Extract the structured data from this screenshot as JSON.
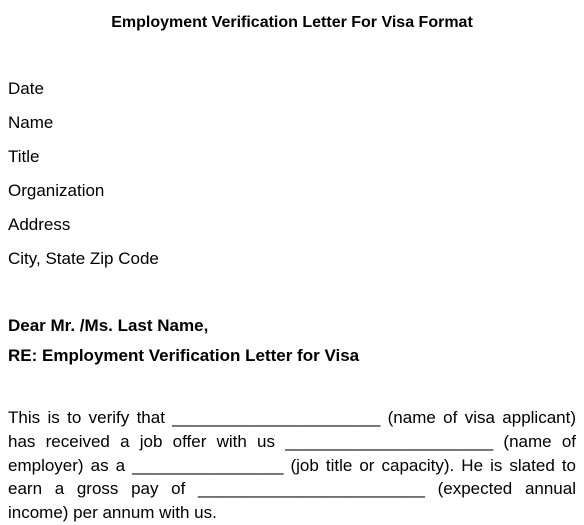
{
  "title": "Employment Verification Letter For Visa Format",
  "header": {
    "date": "Date",
    "name": "Name",
    "jobTitle": "Title",
    "organization": "Organization",
    "address": "Address",
    "cityStateZip": "City, State Zip Code"
  },
  "salutation": "Dear Mr. /Ms. Last Name,",
  "subject": "RE: Employment Verification Letter for Visa",
  "body": "This is to verify that ______________________ (name of visa applicant) has received a job offer with us ______________________ (name of employer) as a ________________ (job title or capacity). He is slated to earn a gross pay of ________________________ (expected annual income) per annum with us."
}
